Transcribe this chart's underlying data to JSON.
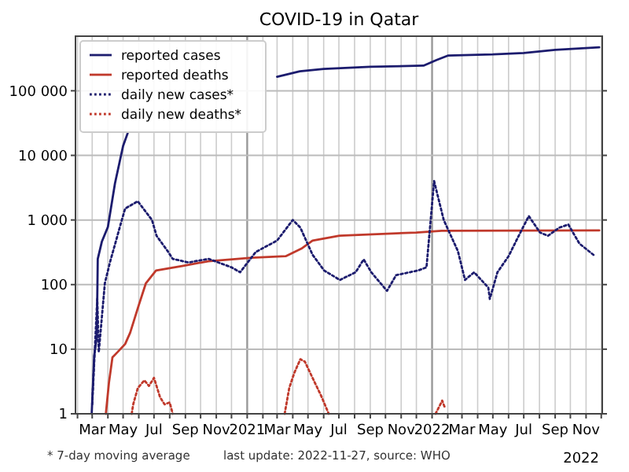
{
  "chart_data": {
    "type": "line",
    "title": "COVID-19 in Qatar",
    "log": "y",
    "grid": true,
    "legend": "top left",
    "ylim": [
      1,
      700000
    ],
    "yticks": [
      1,
      10,
      100,
      {
        "value": 1000,
        "label": "1 000"
      },
      {
        "value": 10000,
        "label": "10 000"
      },
      {
        "value": 100000,
        "label": "100 000"
      }
    ],
    "xlim": [
      "2020-01-28",
      "2022-12-03"
    ],
    "xticks": [
      {
        "value": "2020-02-01",
        "label": null
      },
      {
        "value": "2020-03-01",
        "label": "Mar"
      },
      {
        "value": "2020-04-01",
        "label": null
      },
      {
        "value": "2020-05-01",
        "label": "May"
      },
      {
        "value": "2020-06-01",
        "label": null
      },
      {
        "value": "2020-07-01",
        "label": "Jul"
      },
      {
        "value": "2020-08-01",
        "label": null
      },
      {
        "value": "2020-09-01",
        "label": "Sep"
      },
      {
        "value": "2020-10-01",
        "label": null
      },
      {
        "value": "2020-11-01",
        "label": "Nov"
      },
      {
        "value": "2020-12-01",
        "label": null
      },
      {
        "value": "2021-01-01",
        "label": "2021"
      },
      {
        "value": "2021-02-01",
        "label": null
      },
      {
        "value": "2021-03-01",
        "label": "Mar"
      },
      {
        "value": "2021-04-01",
        "label": null
      },
      {
        "value": "2021-05-01",
        "label": "May"
      },
      {
        "value": "2021-06-01",
        "label": null
      },
      {
        "value": "2021-07-01",
        "label": "Jul"
      },
      {
        "value": "2021-08-01",
        "label": null
      },
      {
        "value": "2021-09-01",
        "label": "Sep"
      },
      {
        "value": "2021-10-01",
        "label": null
      },
      {
        "value": "2021-11-01",
        "label": "Nov"
      },
      {
        "value": "2021-12-01",
        "label": null
      },
      {
        "value": "2022-01-01",
        "label": "2022"
      },
      {
        "value": "2022-02-01",
        "label": null
      },
      {
        "value": "2022-03-01",
        "label": "Mar"
      },
      {
        "value": "2022-04-01",
        "label": null
      },
      {
        "value": "2022-05-01",
        "label": "May"
      },
      {
        "value": "2022-06-01",
        "label": null
      },
      {
        "value": "2022-07-01",
        "label": "Jul"
      },
      {
        "value": "2022-08-01",
        "label": null
      },
      {
        "value": "2022-09-01",
        "label": "Sep"
      },
      {
        "value": "2022-10-01",
        "label": null
      },
      {
        "value": "2022-11-01",
        "label": "Nov"
      },
      {
        "value": "2022-12-01",
        "label": null
      }
    ],
    "annotations": [
      "* 7-day moving average",
      "last update: 2022-11-27, source: WHO",
      "2022"
    ],
    "series": [
      {
        "name": "reported cases",
        "color": "#1c1c6e",
        "line_style": "solid",
        "x": [
          "2020-02-29",
          "2020-03-05",
          "2020-03-10",
          "2020-03-12",
          "2020-03-20",
          "2020-04-01",
          "2020-04-15",
          "2020-05-01",
          "2020-05-10",
          "2020-06-05",
          "2020-07-01",
          "2020-10-01",
          "2021-01-01",
          "2021-03-01",
          "2021-04-15",
          "2021-06-01",
          "2021-09-01",
          "2021-12-15",
          "2022-01-10",
          "2022-02-01",
          "2022-05-01",
          "2022-07-01",
          "2022-09-01",
          "2022-11-27"
        ],
        "values": [
          1,
          8,
          15,
          250,
          460,
          780,
          3700,
          14000,
          22000,
          null,
          null,
          null,
          null,
          165000,
          200000,
          218000,
          235000,
          245000,
          300000,
          350000,
          365000,
          385000,
          430000,
          470000
        ]
      },
      {
        "name": "reported deaths",
        "color": "#c0392b",
        "line_style": "solid",
        "x": [
          "2020-03-28",
          "2020-04-03",
          "2020-04-10",
          "2020-04-20",
          "2020-05-05",
          "2020-05-15",
          "2020-05-30",
          "2020-06-15",
          "2020-07-05",
          "2020-08-28",
          "2020-10-16",
          "2021-01-10",
          "2021-03-18",
          "2021-04-18",
          "2021-05-10",
          "2021-07-02",
          "2021-12-01",
          "2022-01-20",
          "2022-11-27"
        ],
        "values": [
          1,
          3,
          7.5,
          9,
          12,
          18,
          43,
          105,
          165,
          195,
          230,
          260,
          275,
          360,
          480,
          570,
          640,
          680,
          690
        ]
      },
      {
        "name": "daily new cases*",
        "color": "#1c1c6e",
        "line_style": "dotted",
        "x": [
          "2020-03-01",
          "2020-03-11",
          "2020-03-14",
          "2020-03-26",
          "2020-04-05",
          "2020-04-26",
          "2020-05-05",
          "2020-05-30",
          "2020-06-27",
          "2020-07-06",
          "2020-07-28",
          "2020-08-07",
          "2020-09-07",
          "2020-10-17",
          "2020-12-01",
          "2020-12-18",
          "2021-01-18",
          "2021-03-01",
          "2021-04-01",
          "2021-04-16",
          "2021-05-10",
          "2021-06-02",
          "2021-07-03",
          "2021-08-03",
          "2021-08-19",
          "2021-09-03",
          "2021-10-04",
          "2021-10-22",
          "2021-12-04",
          "2021-12-21",
          "2022-01-05",
          "2022-01-24",
          "2022-02-21",
          "2022-03-07",
          "2022-03-25",
          "2022-04-22",
          "2022-04-25",
          "2022-05-10",
          "2022-06-01",
          "2022-06-26",
          "2022-07-11",
          "2022-08-02",
          "2022-08-18",
          "2022-09-09",
          "2022-09-27",
          "2022-10-19",
          "2022-11-19"
        ],
        "values": [
          1.4,
          60,
          9,
          105,
          220,
          850,
          1500,
          1950,
          1000,
          570,
          330,
          250,
          220,
          250,
          185,
          155,
          320,
          480,
          1000,
          760,
          290,
          165,
          118,
          155,
          245,
          155,
          80,
          140,
          165,
          185,
          4000,
          1000,
          330,
          118,
          155,
          90,
          60,
          155,
          275,
          680,
          1150,
          640,
          570,
          760,
          850,
          430,
          275
        ]
      },
      {
        "name": "daily new deaths*",
        "color": "#c0392b",
        "line_style": "dotted",
        "x": [
          "2020-05-18",
          "2020-05-21",
          "2020-05-30",
          "2020-06-12",
          "2020-06-21",
          "2020-07-01",
          "2020-07-13",
          "2020-07-22",
          "2020-08-01",
          "2020-08-07",
          "2020-08-20",
          "2021-03-16",
          "2021-03-25",
          "2021-04-04",
          "2021-04-16",
          "2021-04-25",
          "2021-05-10",
          "2021-05-27",
          "2021-06-11",
          "2021-07-01",
          "2022-01-08",
          "2022-01-21",
          "2022-01-27"
        ],
        "values": [
          1,
          1.4,
          2.5,
          3.3,
          2.7,
          3.6,
          1.8,
          1.4,
          1.5,
          1,
          null,
          1,
          2.5,
          4.3,
          7,
          6.4,
          3.6,
          1.9,
          1,
          null,
          1,
          1.6,
          1.2
        ]
      }
    ]
  }
}
